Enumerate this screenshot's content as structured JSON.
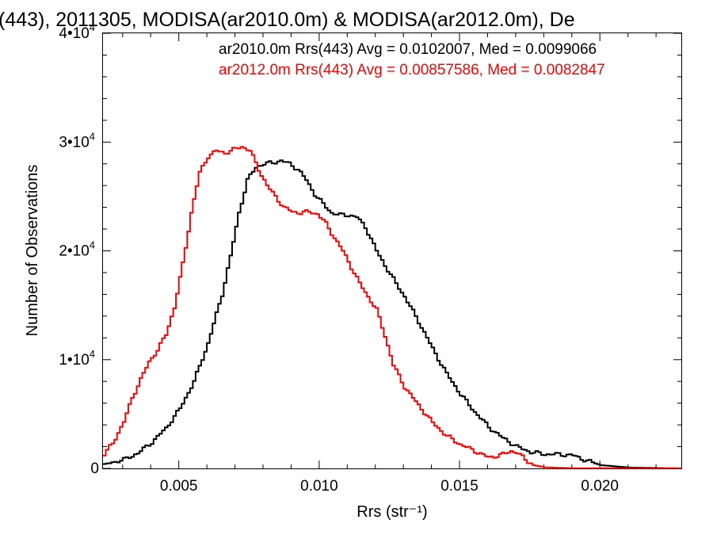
{
  "chart_data": {
    "type": "line",
    "title": "(443), 2011305, MODISA(ar2010.0m) & MODISA(ar2012.0m), De",
    "xlabel": "Rrs (str⁻¹)",
    "ylabel": "Number of Observations",
    "xlim": [
      0.0023,
      0.0229
    ],
    "ylim": [
      0,
      40000
    ],
    "x_ticks": [
      0.005,
      0.01,
      0.015,
      0.02
    ],
    "x_tick_labels": [
      "0.005",
      "0.010",
      "0.015",
      "0.020"
    ],
    "y_ticks": [
      0,
      10000,
      20000,
      30000,
      40000
    ],
    "y_tick_labels": [
      {
        "mantissa": "0",
        "exp": ""
      },
      {
        "mantissa": "1•10",
        "exp": "4"
      },
      {
        "mantissa": "2•10",
        "exp": "4"
      },
      {
        "mantissa": "3•10",
        "exp": "4"
      },
      {
        "mantissa": "4•10",
        "exp": "4"
      }
    ],
    "legend": [
      {
        "text": "ar2010.0m Rrs(443) Avg = 0.0102007, Med = 0.0099066",
        "color": "#000000"
      },
      {
        "text": "ar2012.0m Rrs(443) Avg = 0.00857586, Med = 0.0082847",
        "color": "#ff0000"
      }
    ],
    "legend_position": "top-right",
    "grid": false,
    "series": [
      {
        "color": "#000000",
        "points": [
          [
            0.0023,
            400
          ],
          [
            0.003,
            800
          ],
          [
            0.0035,
            1400
          ],
          [
            0.004,
            2400
          ],
          [
            0.0045,
            3700
          ],
          [
            0.005,
            5500
          ],
          [
            0.0055,
            8000
          ],
          [
            0.006,
            11500
          ],
          [
            0.0065,
            16000
          ],
          [
            0.0068,
            19500
          ],
          [
            0.0071,
            23500
          ],
          [
            0.0074,
            26500
          ],
          [
            0.0077,
            27700
          ],
          [
            0.008,
            28000
          ],
          [
            0.0083,
            28100
          ],
          [
            0.0086,
            28300
          ],
          [
            0.0089,
            28000
          ],
          [
            0.0092,
            27500
          ],
          [
            0.0095,
            26500
          ],
          [
            0.0098,
            25200
          ],
          [
            0.0101,
            24300
          ],
          [
            0.0104,
            23500
          ],
          [
            0.0107,
            23300
          ],
          [
            0.011,
            23300
          ],
          [
            0.0113,
            23100
          ],
          [
            0.0116,
            22200
          ],
          [
            0.012,
            20000
          ],
          [
            0.0125,
            17800
          ],
          [
            0.013,
            15800
          ],
          [
            0.0135,
            13500
          ],
          [
            0.014,
            11000
          ],
          [
            0.0145,
            8700
          ],
          [
            0.015,
            6800
          ],
          [
            0.0155,
            5200
          ],
          [
            0.016,
            3800
          ],
          [
            0.0165,
            2800
          ],
          [
            0.017,
            2000
          ],
          [
            0.0175,
            1500
          ],
          [
            0.018,
            1300
          ],
          [
            0.0185,
            1300
          ],
          [
            0.019,
            1200
          ],
          [
            0.0195,
            700
          ],
          [
            0.02,
            300
          ],
          [
            0.021,
            80
          ],
          [
            0.0229,
            0
          ]
        ]
      },
      {
        "color": "#ff0000",
        "points": [
          [
            0.0023,
            1300
          ],
          [
            0.0026,
            2300
          ],
          [
            0.003,
            4300
          ],
          [
            0.0033,
            6500
          ],
          [
            0.0036,
            8200
          ],
          [
            0.0039,
            9800
          ],
          [
            0.0042,
            10900
          ],
          [
            0.0045,
            12300
          ],
          [
            0.0048,
            14800
          ],
          [
            0.0051,
            18800
          ],
          [
            0.0054,
            23500
          ],
          [
            0.0057,
            27200
          ],
          [
            0.006,
            28700
          ],
          [
            0.0063,
            29200
          ],
          [
            0.0066,
            29000
          ],
          [
            0.0069,
            29300
          ],
          [
            0.0072,
            29600
          ],
          [
            0.0075,
            29200
          ],
          [
            0.0078,
            27500
          ],
          [
            0.0081,
            26000
          ],
          [
            0.0084,
            25000
          ],
          [
            0.0087,
            24000
          ],
          [
            0.009,
            23600
          ],
          [
            0.0093,
            23500
          ],
          [
            0.0096,
            23600
          ],
          [
            0.0099,
            23400
          ],
          [
            0.0102,
            22500
          ],
          [
            0.0105,
            21200
          ],
          [
            0.0108,
            20000
          ],
          [
            0.0111,
            18500
          ],
          [
            0.0114,
            17000
          ],
          [
            0.0117,
            15800
          ],
          [
            0.012,
            14600
          ],
          [
            0.0123,
            12200
          ],
          [
            0.0126,
            9500
          ],
          [
            0.013,
            7500
          ],
          [
            0.0135,
            5800
          ],
          [
            0.014,
            4200
          ],
          [
            0.0145,
            3000
          ],
          [
            0.015,
            2200
          ],
          [
            0.0155,
            1600
          ],
          [
            0.016,
            1000
          ],
          [
            0.0165,
            1300
          ],
          [
            0.0168,
            1600
          ],
          [
            0.017,
            1500
          ],
          [
            0.0173,
            800
          ],
          [
            0.0176,
            300
          ],
          [
            0.018,
            100
          ],
          [
            0.019,
            20
          ],
          [
            0.0229,
            0
          ]
        ]
      }
    ]
  }
}
